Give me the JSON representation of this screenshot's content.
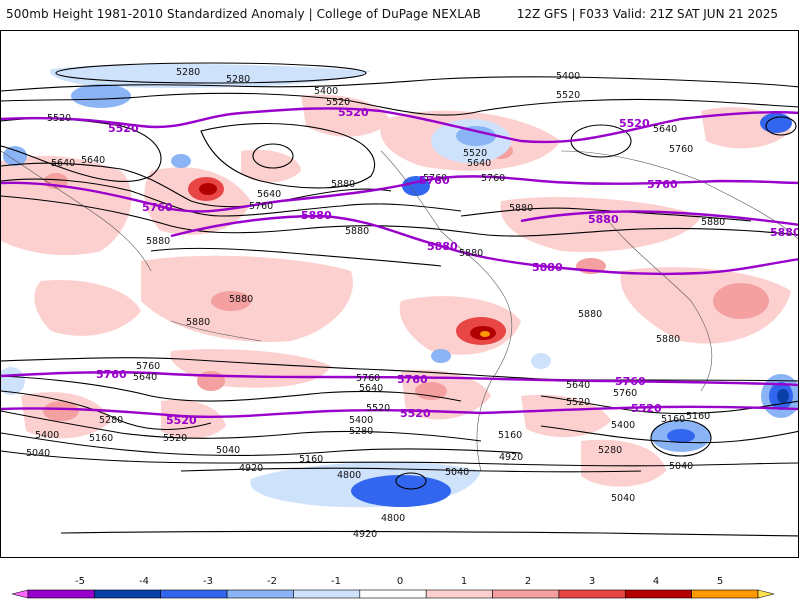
{
  "header": {
    "title": "500mb Height 1981-2010 Standardized Anomaly | College of DuPage NEXLAB",
    "run_info": "12Z GFS | F033 Valid: 21Z SAT JUN 21 2025"
  },
  "colorbar": {
    "labels": [
      "-5",
      "-4",
      "-3",
      "-2",
      "-1",
      "0",
      "1",
      "2",
      "3",
      "4",
      "5"
    ],
    "colors": [
      "#ff66ff",
      "#9900cc",
      "#0a3fa8",
      "#3366ee",
      "#8ab4f5",
      "#cfe2fc",
      "#ffffff",
      "#fdd0d0",
      "#f5a0a0",
      "#e84545",
      "#b30000",
      "#ff9900",
      "#ffe24d"
    ]
  },
  "contour_labels": {
    "black": [
      "5280",
      "5280",
      "5400",
      "5400",
      "5520",
      "5520",
      "5520",
      "5640",
      "5640",
      "5760",
      "5640",
      "5760",
      "5880",
      "5880",
      "5880",
      "5880",
      "5880",
      "5760",
      "5640",
      "5520",
      "5640",
      "5760",
      "5880",
      "5880",
      "5880",
      "5880",
      "5880",
      "5760",
      "5640",
      "5760",
      "5640",
      "5520",
      "5400",
      "5280",
      "5160",
      "5040",
      "5520",
      "5400",
      "5280",
      "5160",
      "5040",
      "5160",
      "4920",
      "4800",
      "4800",
      "4920",
      "5040",
      "5160",
      "4920",
      "5760",
      "5640",
      "5520",
      "5400",
      "5280",
      "5160",
      "5040",
      "5040"
    ],
    "purple": [
      "5520",
      "5520",
      "5520",
      "5760",
      "5760",
      "5760",
      "5880",
      "5880",
      "5880",
      "5880",
      "5880",
      "5760",
      "5520",
      "5760",
      "5520",
      "5760",
      "5520"
    ]
  },
  "colors": {
    "height_contour": "#000000",
    "highlight_contour": "#9900cc",
    "positive_anomaly": "#fdd0d0",
    "negative_anomaly": "#cfe2fc"
  }
}
